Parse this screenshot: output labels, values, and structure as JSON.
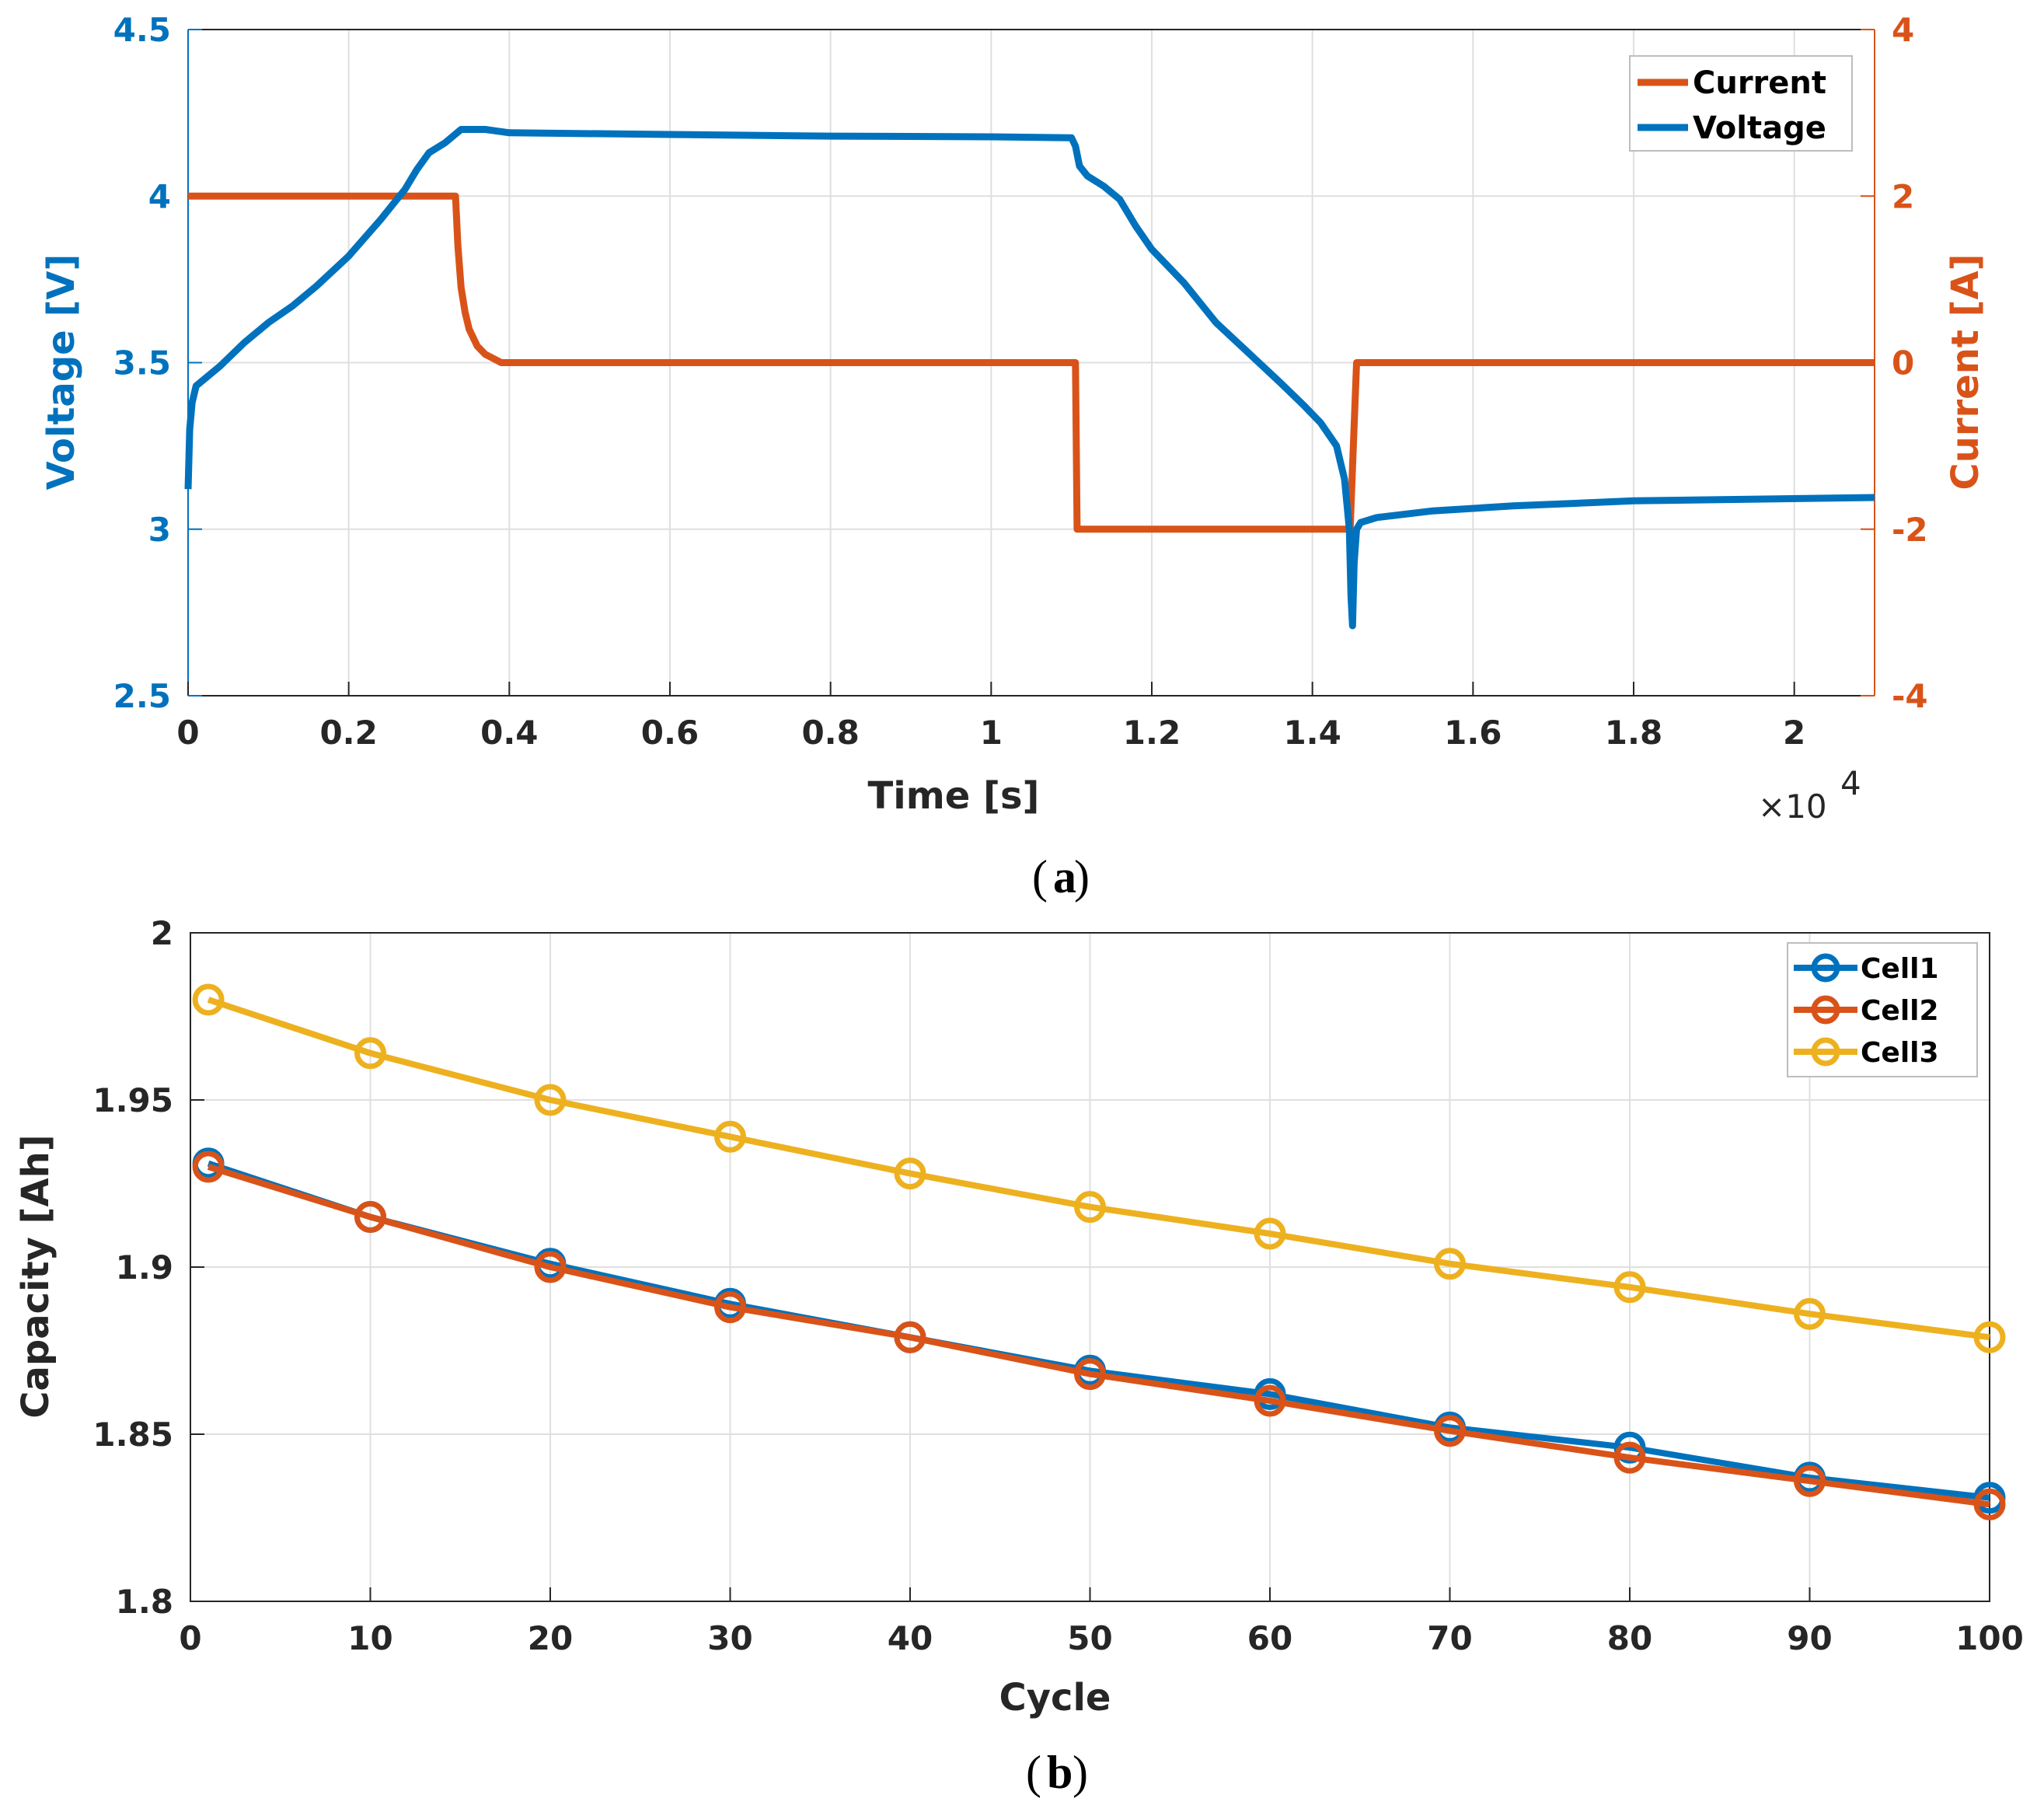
{
  "colors": {
    "blue": "#0072BD",
    "orange": "#D95319",
    "yellow": "#EDB120",
    "left_axis_a": "#0072BD",
    "right_axis_a": "#D95319",
    "axis_dark": "#262626",
    "grid": "#dfdfdf"
  },
  "chart_data": [
    {
      "id": "a",
      "type": "line",
      "panel_label": "a",
      "xlabel": "Time [s]",
      "x_exponent_label": "×10",
      "x_exponent_power": "4",
      "ylabel_left": "Voltage [V]",
      "ylabel_right": "Current [A]",
      "xlim": [
        0,
        2.1
      ],
      "ylim_left": [
        2.5,
        4.5
      ],
      "ylim_right": [
        -4,
        4
      ],
      "xticks": [
        0,
        0.2,
        0.4,
        0.6,
        0.8,
        1,
        1.2,
        1.4,
        1.6,
        1.8,
        2
      ],
      "xtick_labels": [
        "0",
        "0.2",
        "0.4",
        "0.6",
        "0.8",
        "1",
        "1.2",
        "1.4",
        "1.6",
        "1.8",
        "2"
      ],
      "yticks_left": [
        2.5,
        3,
        3.5,
        4,
        4.5
      ],
      "ytick_labels_left": [
        "2.5",
        "3",
        "3.5",
        "4",
        "4.5"
      ],
      "yticks_right": [
        -4,
        -2,
        0,
        2,
        4
      ],
      "ytick_labels_right": [
        "-4",
        "-2",
        "0",
        "2",
        "4"
      ],
      "grid": true,
      "legend_position": "top-right",
      "series": [
        {
          "name": "Current",
          "axis": "right",
          "color": "#D95319",
          "x": [
            0,
            0.333,
            0.336,
            0.34,
            0.345,
            0.35,
            0.36,
            0.37,
            0.38,
            0.39,
            1.105,
            1.107,
            1.447,
            1.455,
            2.1
          ],
          "y": [
            2,
            2,
            1.4,
            0.9,
            0.6,
            0.4,
            0.2,
            0.1,
            0.05,
            0,
            0,
            -2,
            -2,
            0,
            0
          ]
        },
        {
          "name": "Voltage",
          "axis": "left",
          "color": "#0072BD",
          "x": [
            0,
            0.002,
            0.005,
            0.01,
            0.02,
            0.04,
            0.07,
            0.1,
            0.13,
            0.16,
            0.2,
            0.24,
            0.27,
            0.285,
            0.3,
            0.32,
            0.33,
            0.34,
            0.37,
            0.4,
            0.6,
            0.8,
            1.0,
            1.1,
            1.105,
            1.11,
            1.12,
            1.14,
            1.16,
            1.18,
            1.2,
            1.24,
            1.28,
            1.32,
            1.36,
            1.39,
            1.41,
            1.43,
            1.44,
            1.446,
            1.448,
            1.45,
            1.452,
            1.455,
            1.46,
            1.48,
            1.55,
            1.65,
            1.8,
            2.1
          ],
          "y": [
            3.12,
            3.3,
            3.38,
            3.43,
            3.45,
            3.49,
            3.56,
            3.62,
            3.67,
            3.73,
            3.82,
            3.93,
            4.02,
            4.08,
            4.13,
            4.16,
            4.18,
            4.2,
            4.2,
            4.19,
            4.185,
            4.18,
            4.178,
            4.175,
            4.15,
            4.09,
            4.06,
            4.03,
            3.99,
            3.91,
            3.84,
            3.74,
            3.62,
            3.53,
            3.44,
            3.37,
            3.32,
            3.25,
            3.15,
            3.0,
            2.8,
            2.71,
            2.9,
            3.0,
            3.02,
            3.035,
            3.055,
            3.07,
            3.085,
            3.095
          ]
        }
      ]
    },
    {
      "id": "b",
      "type": "line",
      "panel_label": "b",
      "xlabel": "Cycle",
      "ylabel": "Capacity [Ah]",
      "xlim": [
        0,
        100
      ],
      "ylim": [
        1.8,
        2
      ],
      "xticks": [
        0,
        10,
        20,
        30,
        40,
        50,
        60,
        70,
        80,
        90,
        100
      ],
      "xtick_labels": [
        "0",
        "10",
        "20",
        "30",
        "40",
        "50",
        "60",
        "70",
        "80",
        "90",
        "100"
      ],
      "yticks": [
        1.8,
        1.85,
        1.9,
        1.95,
        2
      ],
      "ytick_labels": [
        "1.8",
        "1.85",
        "1.9",
        "1.95",
        "2"
      ],
      "grid": true,
      "legend_position": "top-right",
      "marker": "circle",
      "series": [
        {
          "name": "Cell1",
          "color": "#0072BD",
          "x": [
            1,
            10,
            20,
            30,
            40,
            50,
            60,
            70,
            80,
            90,
            100
          ],
          "y": [
            1.931,
            1.915,
            1.901,
            1.889,
            1.879,
            1.869,
            1.862,
            1.852,
            1.846,
            1.837,
            1.831
          ]
        },
        {
          "name": "Cell2",
          "color": "#D95319",
          "x": [
            1,
            10,
            20,
            30,
            40,
            50,
            60,
            70,
            80,
            90,
            100
          ],
          "y": [
            1.93,
            1.915,
            1.9,
            1.888,
            1.879,
            1.868,
            1.86,
            1.851,
            1.843,
            1.836,
            1.829
          ]
        },
        {
          "name": "Cell3",
          "color": "#EDB120",
          "x": [
            1,
            10,
            20,
            30,
            40,
            50,
            60,
            70,
            80,
            90,
            100
          ],
          "y": [
            1.98,
            1.964,
            1.95,
            1.939,
            1.928,
            1.918,
            1.91,
            1.901,
            1.894,
            1.886,
            1.879
          ]
        }
      ]
    }
  ]
}
